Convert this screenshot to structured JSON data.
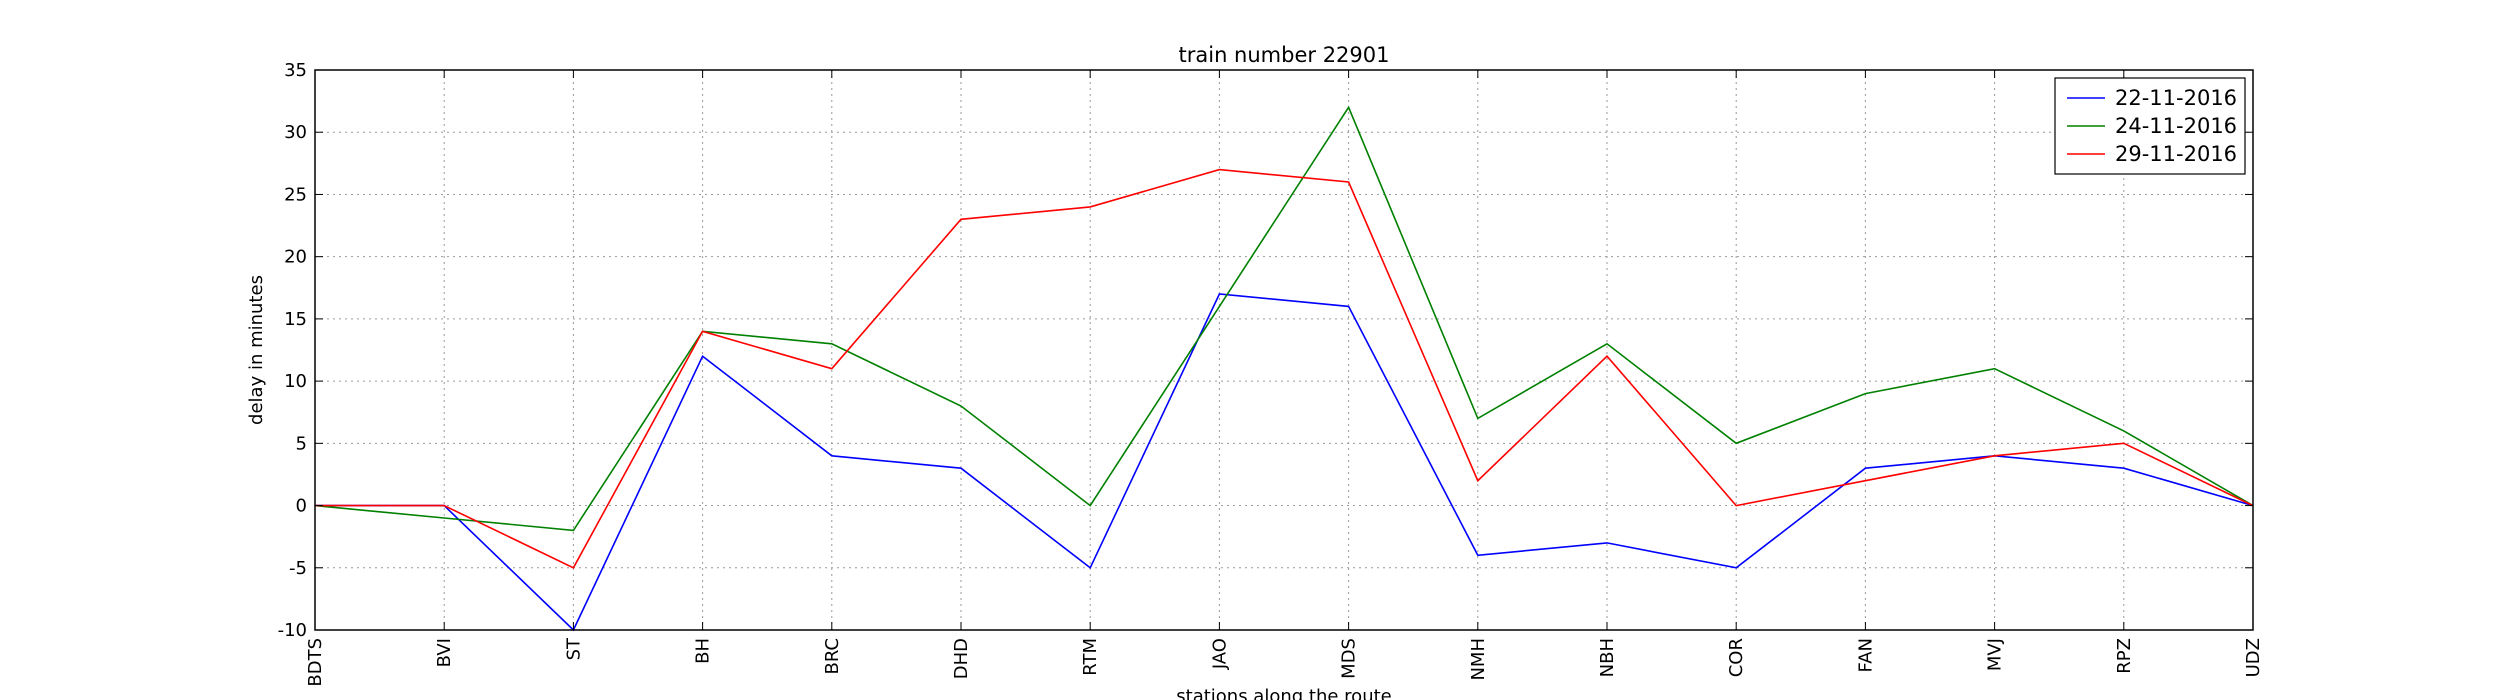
{
  "chart_data": {
    "type": "line",
    "title": "train number 22901",
    "xlabel": "stations along the route",
    "ylabel": "delay in minutes",
    "categories": [
      "BDTS",
      "BVI",
      "ST",
      "BH",
      "BRC",
      "DHD",
      "RTM",
      "JAO",
      "MDS",
      "NMH",
      "NBH",
      "COR",
      "FAN",
      "MVJ",
      "RPZ",
      "UDZ"
    ],
    "ylim": [
      -10,
      35
    ],
    "yticks": [
      -10,
      -5,
      0,
      5,
      10,
      15,
      20,
      25,
      30,
      35
    ],
    "grid": true,
    "legend_position": "top-right",
    "series": [
      {
        "name": "22-11-2016",
        "color": "#0000ff",
        "values": [
          0,
          0,
          -10,
          12,
          4,
          3,
          -5,
          17,
          16,
          -4,
          -3,
          -5,
          3,
          4,
          3,
          0
        ]
      },
      {
        "name": "24-11-2016",
        "color": "#008000",
        "values": [
          0,
          -1,
          -2,
          14,
          13,
          8,
          0,
          16,
          32,
          7,
          13,
          5,
          9,
          11,
          6,
          0
        ]
      },
      {
        "name": "29-11-2016",
        "color": "#ff0000",
        "values": [
          0,
          0,
          -5,
          14,
          11,
          23,
          24,
          27,
          26,
          2,
          12,
          0,
          2,
          4,
          5,
          0
        ]
      }
    ]
  }
}
